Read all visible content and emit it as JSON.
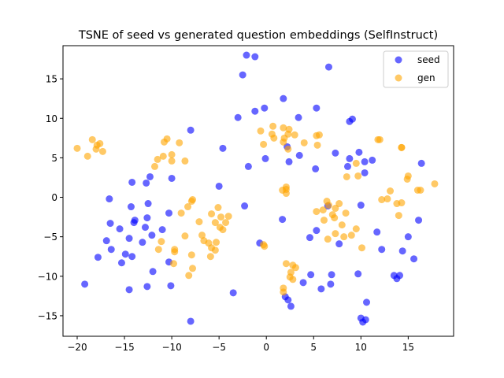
{
  "chart_data": {
    "type": "scatter",
    "title": "TSNE of seed vs generated question embeddings (SelfInstruct)",
    "xlabel": "",
    "ylabel": "",
    "xlim": [
      -21.5,
      19.8
    ],
    "ylim": [
      -17.6,
      19.2
    ],
    "xticks": [
      -20,
      -15,
      -10,
      -5,
      0,
      5,
      10,
      15
    ],
    "yticks": [
      -15,
      -10,
      -5,
      0,
      5,
      10,
      15
    ],
    "grid": false,
    "legend_position": "top-right",
    "series": [
      {
        "name": "seed",
        "color": "#0000ff",
        "points": [
          [
            -2.1,
            18.0
          ],
          [
            -1.2,
            17.8
          ],
          [
            6.6,
            16.5
          ],
          [
            -2.5,
            15.5
          ],
          [
            1.8,
            12.5
          ],
          [
            -0.2,
            11.3
          ],
          [
            5.3,
            11.3
          ],
          [
            -1.2,
            10.9
          ],
          [
            -3.0,
            10.1
          ],
          [
            3.4,
            10.1
          ],
          [
            8.8,
            9.6
          ],
          [
            9.1,
            9.9
          ],
          [
            -8.0,
            8.5
          ],
          [
            -4.6,
            6.2
          ],
          [
            2.2,
            6.4
          ],
          [
            3.5,
            5.3
          ],
          [
            7.3,
            5.6
          ],
          [
            8.8,
            4.9
          ],
          [
            9.8,
            5.7
          ],
          [
            10.4,
            4.5
          ],
          [
            11.2,
            4.7
          ],
          [
            16.4,
            4.3
          ],
          [
            -0.1,
            4.9
          ],
          [
            2.4,
            4.5
          ],
          [
            5.2,
            3.6
          ],
          [
            8.6,
            3.9
          ],
          [
            10.4,
            3.1
          ],
          [
            -1.9,
            3.9
          ],
          [
            -12.3,
            2.6
          ],
          [
            -12.7,
            1.8
          ],
          [
            -14.2,
            1.9
          ],
          [
            -10.0,
            2.4
          ],
          [
            -5.0,
            1.4
          ],
          [
            -16.6,
            -0.2
          ],
          [
            -12.5,
            -0.8
          ],
          [
            -14.3,
            -1.2
          ],
          [
            -10.3,
            -2.0
          ],
          [
            -2.3,
            -1.1
          ],
          [
            6.5,
            -1.1
          ],
          [
            10.0,
            -1.0
          ],
          [
            -12.6,
            -2.6
          ],
          [
            -14.0,
            -3.2
          ],
          [
            -16.5,
            -3.3
          ],
          [
            -13.9,
            -2.9
          ],
          [
            -12.8,
            -3.8
          ],
          [
            -15.5,
            -4.0
          ],
          [
            -11.0,
            -4.1
          ],
          [
            1.7,
            -2.8
          ],
          [
            16.1,
            -2.9
          ],
          [
            5.3,
            -4.2
          ],
          [
            -12.1,
            -4.8
          ],
          [
            -13.1,
            -5.7
          ],
          [
            -14.5,
            -5.2
          ],
          [
            -16.9,
            -5.5
          ],
          [
            4.6,
            -5.1
          ],
          [
            11.7,
            -4.4
          ],
          [
            15.0,
            -5.0
          ],
          [
            -0.7,
            -5.8
          ],
          [
            7.7,
            -5.9
          ],
          [
            -16.4,
            -6.6
          ],
          [
            -14.9,
            -7.2
          ],
          [
            12.2,
            -6.6
          ],
          [
            14.4,
            -6.8
          ],
          [
            -17.8,
            -7.6
          ],
          [
            -14.2,
            -7.5
          ],
          [
            -15.3,
            -8.3
          ],
          [
            -10.3,
            -8.2
          ],
          [
            15.6,
            -7.8
          ],
          [
            -12.0,
            -9.4
          ],
          [
            4.7,
            -9.8
          ],
          [
            6.9,
            -9.8
          ],
          [
            9.7,
            -9.7
          ],
          [
            13.5,
            -9.9
          ],
          [
            14.1,
            -9.9
          ],
          [
            -19.2,
            -11.0
          ],
          [
            -10.1,
            -11.2
          ],
          [
            -14.5,
            -11.7
          ],
          [
            -12.6,
            -11.3
          ],
          [
            3.9,
            -10.8
          ],
          [
            13.8,
            -10.3
          ],
          [
            6.8,
            -11.0
          ],
          [
            5.8,
            -11.6
          ],
          [
            2.0,
            -12.6
          ],
          [
            -3.5,
            -12.1
          ],
          [
            2.3,
            -13.0
          ],
          [
            10.6,
            -13.3
          ],
          [
            2.6,
            -13.8
          ],
          [
            10.0,
            -15.3
          ],
          [
            10.2,
            -15.8
          ],
          [
            10.5,
            -15.5
          ],
          [
            -8.0,
            -15.7
          ]
        ]
      },
      {
        "name": "gen",
        "color": "#ffa500",
        "points": [
          [
            -20.0,
            6.2
          ],
          [
            -18.4,
            7.3
          ],
          [
            -17.6,
            6.8
          ],
          [
            -17.9,
            6.6
          ],
          [
            -18.0,
            6.1
          ],
          [
            -17.3,
            5.8
          ],
          [
            -18.9,
            5.2
          ],
          [
            -10.5,
            7.4
          ],
          [
            -10.8,
            7.0
          ],
          [
            -9.2,
            6.9
          ],
          [
            -10.9,
            5.2
          ],
          [
            -10.0,
            5.4
          ],
          [
            -10.0,
            4.6
          ],
          [
            -8.6,
            4.6
          ],
          [
            -11.5,
            4.8
          ],
          [
            -11.8,
            3.9
          ],
          [
            -11.1,
            -5.6
          ],
          [
            -9.7,
            -6.6
          ],
          [
            -9.7,
            -6.9
          ],
          [
            -9.8,
            -8.4
          ],
          [
            -11.4,
            -6.6
          ],
          [
            -9.0,
            -2.0
          ],
          [
            -8.6,
            -4.9
          ],
          [
            -8.2,
            -9.9
          ],
          [
            -7.8,
            -9.0
          ],
          [
            -7.9,
            -0.5
          ],
          [
            -7.8,
            -0.3
          ],
          [
            -8.3,
            -1.2
          ],
          [
            -7.9,
            -7.3
          ],
          [
            -5.1,
            -1.3
          ],
          [
            -5.8,
            -2.1
          ],
          [
            -4.8,
            -2.5
          ],
          [
            -4.0,
            -2.4
          ],
          [
            -7.1,
            -3.1
          ],
          [
            -5.4,
            -3.2
          ],
          [
            -4.3,
            -3.2
          ],
          [
            -6.8,
            -4.8
          ],
          [
            -6.6,
            -5.5
          ],
          [
            -5.3,
            -5.7
          ],
          [
            -6.1,
            -5.8
          ],
          [
            -5.8,
            -6.4
          ],
          [
            -5.4,
            -6.7
          ],
          [
            -5.9,
            -7.5
          ],
          [
            -4.6,
            -4.1
          ],
          [
            -4.9,
            -3.8
          ],
          [
            -0.2,
            -6.2
          ],
          [
            -0.3,
            -6.0
          ],
          [
            0.7,
            9.0
          ],
          [
            1.8,
            8.8
          ],
          [
            2.4,
            8.6
          ],
          [
            2.3,
            8.0
          ],
          [
            3.0,
            7.9
          ],
          [
            0.8,
            7.5
          ],
          [
            1.8,
            7.0
          ],
          [
            0.6,
            8.0
          ],
          [
            -0.6,
            8.4
          ],
          [
            -0.3,
            6.7
          ],
          [
            1.9,
            7.5
          ],
          [
            2.3,
            6.1
          ],
          [
            4.0,
            6.9
          ],
          [
            5.6,
            7.9
          ],
          [
            5.3,
            7.8
          ],
          [
            5.4,
            6.6
          ],
          [
            2.1,
            1.3
          ],
          [
            1.7,
            0.9
          ],
          [
            2.1,
            0.5
          ],
          [
            2.1,
            1.0
          ],
          [
            2.1,
            -8.4
          ],
          [
            2.8,
            -8.6
          ],
          [
            3.1,
            -8.9
          ],
          [
            2.6,
            -9.5
          ],
          [
            2.5,
            -10.1
          ],
          [
            2.8,
            -10.4
          ],
          [
            1.8,
            -11.5
          ],
          [
            1.8,
            -12.0
          ],
          [
            6.4,
            -0.5
          ],
          [
            6.6,
            -1.0
          ],
          [
            5.3,
            -1.8
          ],
          [
            6.0,
            -1.6
          ],
          [
            6.1,
            -2.9
          ],
          [
            7.7,
            -0.8
          ],
          [
            7.3,
            -1.4
          ],
          [
            7.0,
            -2.2
          ],
          [
            7.2,
            -2.6
          ],
          [
            8.4,
            -2.0
          ],
          [
            8.0,
            -3.5
          ],
          [
            7.3,
            -4.6
          ],
          [
            6.5,
            -5.3
          ],
          [
            8.2,
            -5.0
          ],
          [
            9.5,
            -4.0
          ],
          [
            9.0,
            -4.8
          ],
          [
            10.1,
            -6.4
          ],
          [
            9.7,
            2.7
          ],
          [
            8.5,
            2.6
          ],
          [
            9.5,
            4.3
          ],
          [
            11.8,
            7.3
          ],
          [
            12.0,
            7.3
          ],
          [
            14.3,
            6.3
          ],
          [
            14.3,
            6.3
          ],
          [
            14.9,
            2.3
          ],
          [
            15.0,
            2.7
          ],
          [
            13.1,
            0.8
          ],
          [
            12.2,
            -0.3
          ],
          [
            12.8,
            -0.2
          ],
          [
            13.8,
            -0.8
          ],
          [
            14.3,
            -0.7
          ],
          [
            16.0,
            0.9
          ],
          [
            16.3,
            0.9
          ],
          [
            17.8,
            1.7
          ],
          [
            14.0,
            -2.3
          ]
        ]
      }
    ]
  }
}
